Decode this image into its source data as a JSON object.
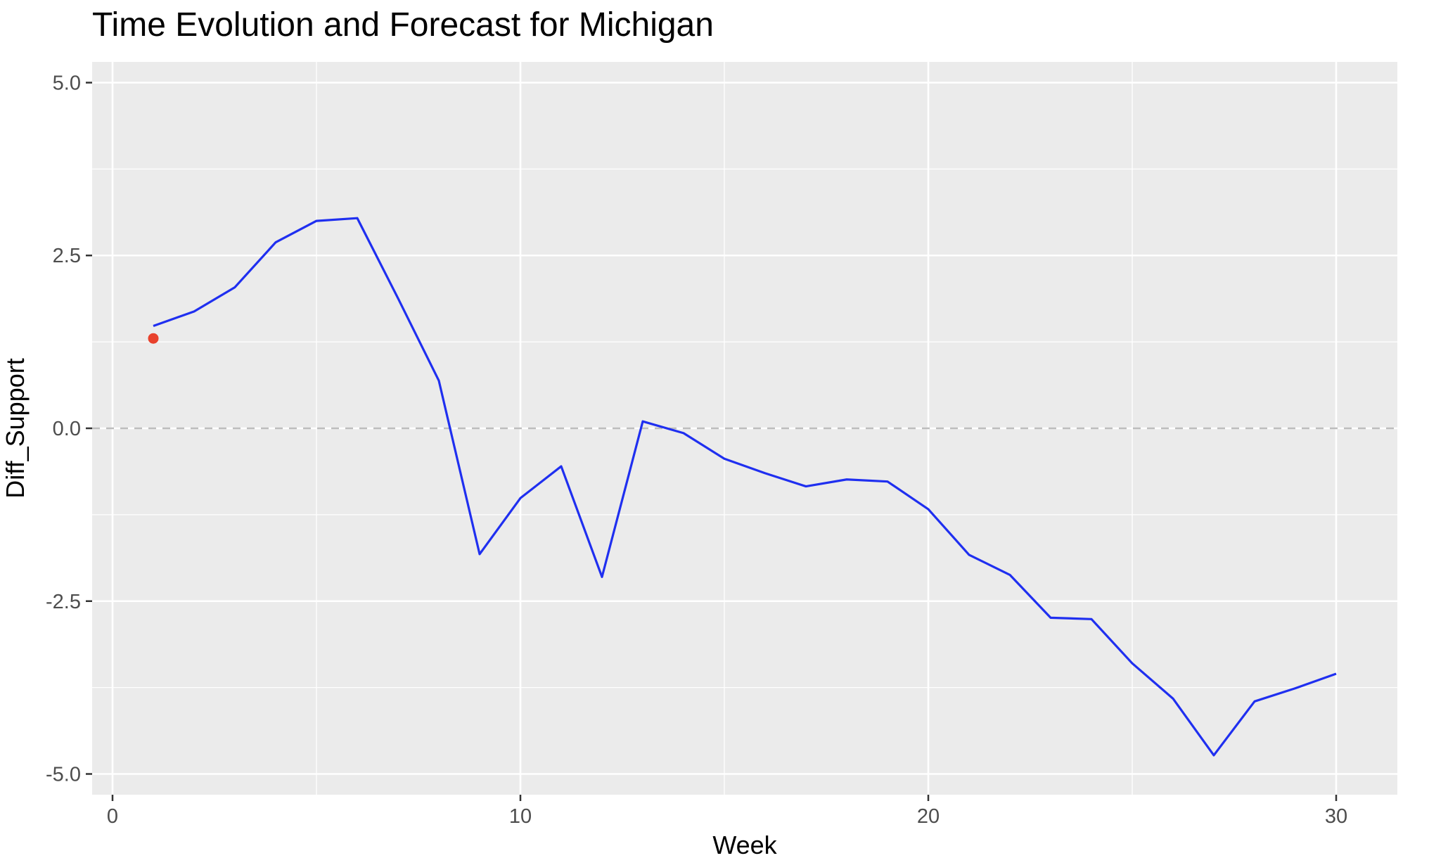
{
  "chart_data": {
    "type": "line",
    "title": "Time Evolution and Forecast for Michigan",
    "xlabel": "Week",
    "ylabel": "Diff_Support",
    "xlim": [
      -0.5,
      31.5
    ],
    "ylim": [
      -5.3,
      5.3
    ],
    "x_ticks": [
      0,
      10,
      20,
      30
    ],
    "x_tick_labels": [
      "0",
      "10",
      "20",
      "30"
    ],
    "y_ticks": [
      -5.0,
      -2.5,
      0.0,
      2.5,
      5.0
    ],
    "y_tick_labels": [
      "-5.0",
      "-2.5",
      "0.0",
      "2.5",
      "5.0"
    ],
    "grid": true,
    "reference_line": {
      "y": 0.0,
      "style": "dashed",
      "color": "#bdbdbd"
    },
    "series": [
      {
        "type": "line",
        "color": "#1f2ff0",
        "x": [
          1,
          2,
          3,
          4,
          5,
          6,
          7,
          8,
          9,
          10,
          11,
          12,
          13,
          14,
          15,
          16,
          17,
          18,
          19,
          20,
          21,
          22,
          23,
          24,
          25,
          26,
          27,
          28,
          29,
          30
        ],
        "y": [
          1.48,
          1.69,
          2.04,
          2.69,
          3.0,
          3.04,
          1.88,
          0.69,
          -1.82,
          -1.01,
          -0.55,
          -2.15,
          0.1,
          -0.07,
          -0.44,
          -0.65,
          -0.84,
          -0.74,
          -0.77,
          -1.17,
          -1.83,
          -2.12,
          -2.74,
          -2.76,
          -3.4,
          -3.91,
          -4.73,
          -3.95,
          -3.76,
          -3.55
        ]
      },
      {
        "type": "point",
        "color": "#e8412c",
        "x": [
          1
        ],
        "y": [
          1.3
        ]
      }
    ]
  }
}
